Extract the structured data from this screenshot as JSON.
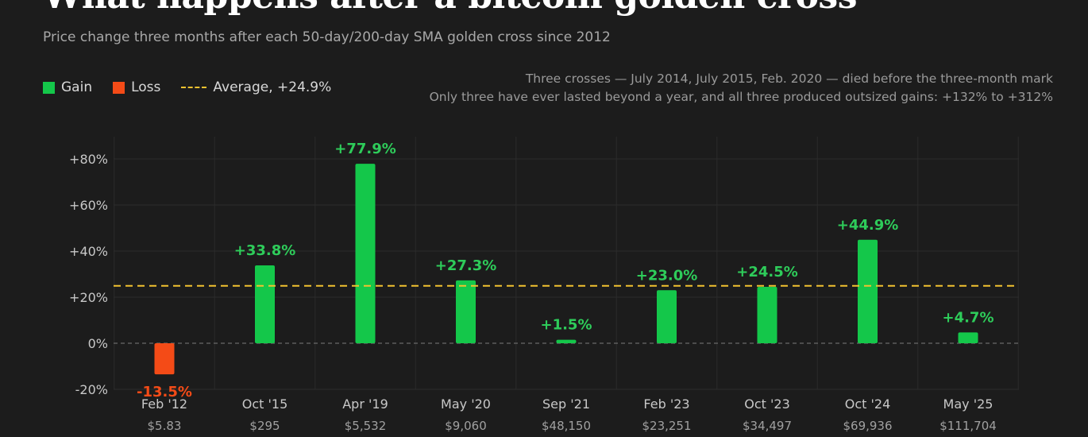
{
  "header": {
    "title": "What happens after a bitcoin golden cross",
    "subtitle": "Price change three months after each 50-day/200-day SMA golden cross since 2012"
  },
  "legend": {
    "gain": "Gain",
    "loss": "Loss",
    "average": "Average, +24.9%"
  },
  "notes": {
    "line1": "Three crosses — July 2014, July 2015, Feb. 2020 — died before the three-month mark",
    "line2": "Only three have ever lasted beyond a year, and all three produced outsized gains: +132% to +312%"
  },
  "colors": {
    "background": "#1c1c1c",
    "gain": "#14c74a",
    "loss": "#f44b17",
    "average": "#f2c230",
    "gain_label": "#2ecc5a",
    "loss_label": "#f44b17"
  },
  "chart_data": {
    "type": "bar",
    "categories": [
      "Feb '12",
      "Oct '15",
      "Apr '19",
      "May '20",
      "Sep '21",
      "Feb '23",
      "Oct '23",
      "Oct '24",
      "May '25"
    ],
    "prices": [
      "$5.83",
      "$295",
      "$5,532",
      "$9,060",
      "$48,150",
      "$23,251",
      "$34,497",
      "$69,936",
      "$111,704"
    ],
    "values": [
      -13.5,
      33.8,
      77.9,
      27.3,
      1.5,
      23.0,
      24.5,
      44.9,
      4.7
    ],
    "value_labels": [
      "-13.5%",
      "+33.8%",
      "+77.9%",
      "+27.3%",
      "+1.5%",
      "+23.0%",
      "+24.5%",
      "+44.9%",
      "+4.7%"
    ],
    "average": 24.9,
    "ylim": [
      -20,
      90
    ],
    "yticks": [
      -20,
      0,
      20,
      40,
      60,
      80
    ],
    "ytick_labels": [
      "-20%",
      "0%",
      "+20%",
      "+40%",
      "+60%",
      "+80%"
    ],
    "grid": true,
    "legend_position": "top-left"
  }
}
